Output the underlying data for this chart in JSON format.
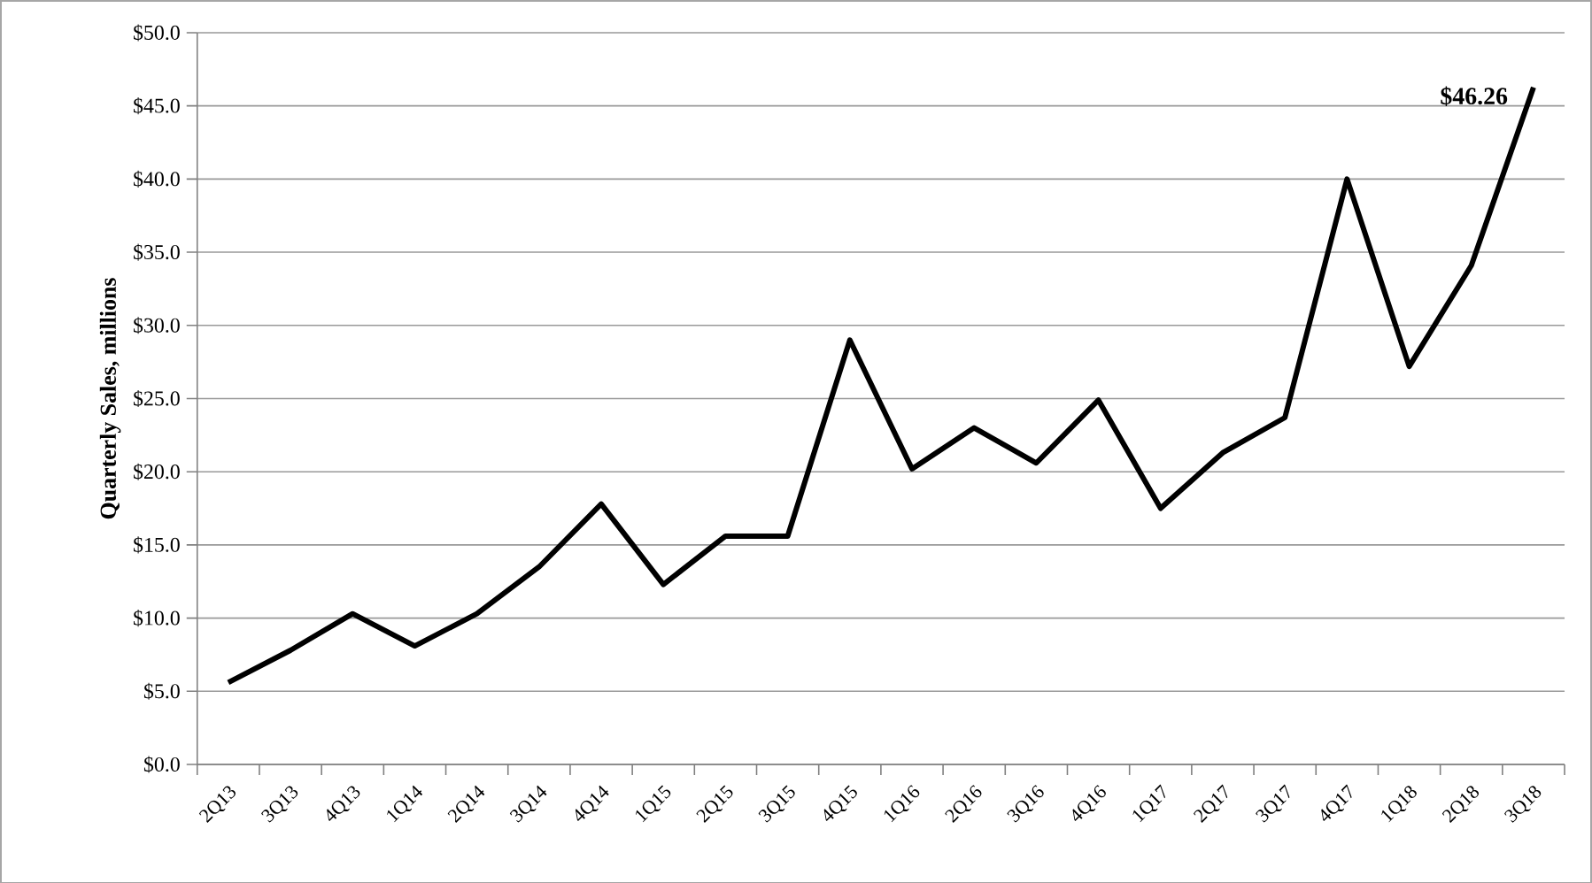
{
  "chart_data": {
    "type": "line",
    "ylabel": "Quarterly Sales, millions",
    "categories": [
      "2Q13",
      "3Q13",
      "4Q13",
      "1Q14",
      "2Q14",
      "3Q14",
      "4Q14",
      "1Q15",
      "2Q15",
      "3Q15",
      "4Q15",
      "1Q16",
      "2Q16",
      "3Q16",
      "4Q16",
      "1Q17",
      "2Q17",
      "3Q17",
      "4Q17",
      "1Q18",
      "2Q18",
      "3Q18"
    ],
    "values": [
      5.6,
      7.8,
      10.3,
      8.1,
      10.3,
      13.5,
      17.8,
      12.3,
      15.6,
      15.6,
      29.0,
      20.2,
      23.0,
      20.6,
      24.9,
      17.5,
      21.3,
      23.7,
      40.0,
      27.2,
      34.1,
      46.26
    ],
    "color": "#000000",
    "ylim": [
      0,
      50
    ],
    "yticks": [
      {
        "value": 0,
        "label": "$0.0"
      },
      {
        "value": 5,
        "label": "$5.0"
      },
      {
        "value": 10,
        "label": "$10.0"
      },
      {
        "value": 15,
        "label": "$15.0"
      },
      {
        "value": 20,
        "label": "$20.0"
      },
      {
        "value": 25,
        "label": "$25.0"
      },
      {
        "value": 30,
        "label": "$30.0"
      },
      {
        "value": 35,
        "label": "$35.0"
      },
      {
        "value": 40,
        "label": "$40.0"
      },
      {
        "value": 45,
        "label": "$45.0"
      },
      {
        "value": 50,
        "label": "$50.0"
      }
    ],
    "grid": "y",
    "marker": "none",
    "line_style": "solid",
    "value_labels": [
      null,
      null,
      null,
      null,
      null,
      null,
      null,
      null,
      null,
      null,
      null,
      null,
      null,
      null,
      null,
      null,
      null,
      null,
      null,
      null,
      null,
      "**$46.26**"
    ]
  }
}
